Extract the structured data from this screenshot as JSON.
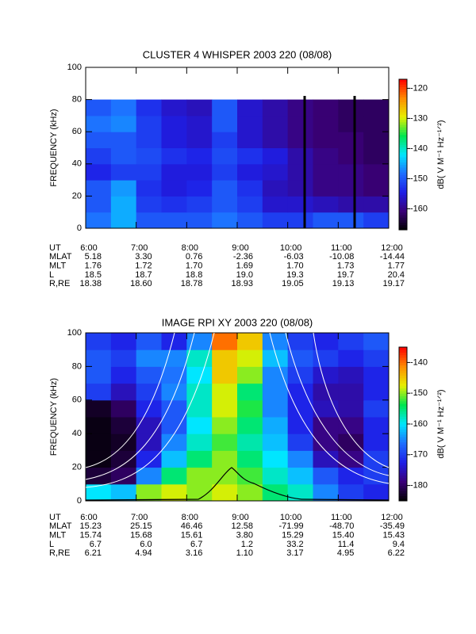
{
  "chart_data": [
    {
      "type": "heatmap",
      "title": "CLUSTER 4 WHISPER 2003 220 (08/08)",
      "y_label": "FREQUENCY (kHz)",
      "colorbar_label": "dB( V M⁻¹ Hz⁻¹ᐟ²)",
      "xlim": [
        6,
        12
      ],
      "xticks": [
        {
          "value": 6,
          "label": "6:00"
        },
        {
          "value": 7,
          "label": "7:00"
        },
        {
          "value": 8,
          "label": "8:00"
        },
        {
          "value": 9,
          "label": "9:00"
        },
        {
          "value": 10,
          "label": "10:00"
        },
        {
          "value": 11,
          "label": "11:00"
        },
        {
          "value": 12,
          "label": "12:00"
        }
      ],
      "ylim": [
        0,
        100
      ],
      "yticks": [
        0,
        20,
        40,
        60,
        80,
        100
      ],
      "clim": [
        -167,
        -117
      ],
      "cticks": [
        -160,
        -150,
        -140,
        -130,
        -120
      ],
      "colormap": [
        "#000000",
        "#3a0078",
        "#1e1ee6",
        "#1e6eff",
        "#00e6ff",
        "#00e650",
        "#e6f000",
        "#ff8c00",
        "#ff0000"
      ],
      "x_bins": [
        6,
        6.5,
        7,
        7.5,
        8,
        8.5,
        9,
        9.5,
        10,
        10.5,
        11,
        11.5,
        12
      ],
      "y_bins": [
        0,
        10,
        20,
        30,
        40,
        50,
        60,
        70,
        80
      ],
      "z": [
        [
          -148,
          -145,
          -150,
          -150,
          -150,
          -148,
          -150,
          -152,
          -152,
          -150,
          -150,
          -152
        ],
        [
          -150,
          -145,
          -152,
          -153,
          -152,
          -150,
          -152,
          -156,
          -156,
          -157,
          -158,
          -158
        ],
        [
          -150,
          -146,
          -153,
          -155,
          -154,
          -150,
          -153,
          -157,
          -158,
          -160,
          -160,
          -161
        ],
        [
          -154,
          -152,
          -152,
          -155,
          -155,
          -152,
          -155,
          -156,
          -158,
          -160,
          -160,
          -161
        ],
        [
          -152,
          -150,
          -151,
          -153,
          -154,
          -151,
          -153,
          -155,
          -158,
          -160,
          -161,
          -162
        ],
        [
          -150,
          -150,
          -152,
          -155,
          -156,
          -152,
          -156,
          -158,
          -160,
          -161,
          -161,
          -162
        ],
        [
          -148,
          -147,
          -152,
          -155,
          -156,
          -150,
          -156,
          -158,
          -160,
          -161,
          -162,
          -162
        ],
        [
          -150,
          -148,
          -153,
          -156,
          -157,
          -150,
          -156,
          -158,
          -160,
          -161,
          -162,
          -162
        ]
      ],
      "ephemeris": {
        "labels": [
          "UT",
          "MLAT",
          "MLT",
          "L",
          "R,RE"
        ],
        "rows": [
          [
            "5.18",
            "3.30",
            "0.76",
            "-2.36",
            "-6.03",
            "-10.08",
            "-14.44"
          ],
          [
            "1.76",
            "1.72",
            "1.70",
            "1.69",
            "1.70",
            "1.73",
            "1.77"
          ],
          [
            "18.5",
            "18.7",
            "18.8",
            "19.0",
            "19.3",
            "19.7",
            "20.4"
          ],
          [
            "18.38",
            "18.60",
            "18.78",
            "18.93",
            "19.05",
            "19.13",
            "19.17"
          ]
        ]
      }
    },
    {
      "type": "heatmap",
      "title": "IMAGE RPI XY 2003 220 (08/08)",
      "y_label": "FREQUENCY (kHz)",
      "colorbar_label": "dB( V M⁻¹ Hz⁻¹ᐟ²)",
      "xlim": [
        6,
        12
      ],
      "xticks": [
        {
          "value": 6,
          "label": "6:00"
        },
        {
          "value": 7,
          "label": "7:00"
        },
        {
          "value": 8,
          "label": "8:00"
        },
        {
          "value": 9,
          "label": "9:00"
        },
        {
          "value": 10,
          "label": "10:00"
        },
        {
          "value": 11,
          "label": "11:00"
        },
        {
          "value": 12,
          "label": "12:00"
        }
      ],
      "ylim": [
        0,
        100
      ],
      "yticks": [
        0,
        20,
        40,
        60,
        80,
        100
      ],
      "clim": [
        -185,
        -135
      ],
      "cticks": [
        -180,
        -170,
        -160,
        -150,
        -140
      ],
      "colormap": [
        "#000000",
        "#3a0078",
        "#1e1ee6",
        "#1e6eff",
        "#00e6ff",
        "#00e650",
        "#e6f000",
        "#ff8c00",
        "#ff0000"
      ],
      "x_bins": [
        6,
        6.5,
        7,
        7.5,
        8,
        8.5,
        9,
        9.5,
        10,
        10.5,
        11,
        11.5,
        12
      ],
      "y_bins": [
        0,
        10,
        20,
        30,
        40,
        50,
        60,
        70,
        80,
        90,
        100
      ],
      "z": [
        [
          -160,
          -162,
          -150,
          -148,
          -150,
          -148,
          -150,
          -155,
          -158,
          -165,
          -170,
          -172
        ],
        [
          -182,
          -180,
          -165,
          -155,
          -150,
          -150,
          -152,
          -158,
          -162,
          -168,
          -172,
          -170
        ],
        [
          -184,
          -182,
          -172,
          -162,
          -155,
          -150,
          -155,
          -160,
          -165,
          -175,
          -178,
          -170
        ],
        [
          -184,
          -183,
          -175,
          -165,
          -158,
          -152,
          -157,
          -162,
          -170,
          -178,
          -180,
          -172
        ],
        [
          -184,
          -182,
          -175,
          -168,
          -160,
          -150,
          -155,
          -163,
          -172,
          -178,
          -178,
          -172
        ],
        [
          -183,
          -180,
          -172,
          -168,
          -158,
          -148,
          -153,
          -165,
          -172,
          -175,
          -176,
          -170
        ],
        [
          -170,
          -175,
          -170,
          -165,
          -158,
          -148,
          -155,
          -165,
          -172,
          -176,
          -176,
          -172
        ],
        [
          -168,
          -172,
          -168,
          -166,
          -160,
          -145,
          -150,
          -165,
          -170,
          -174,
          -175,
          -172
        ],
        [
          -168,
          -170,
          -165,
          -165,
          -158,
          -145,
          -148,
          -162,
          -168,
          -170,
          -172,
          -170
        ],
        [
          -170,
          -172,
          -168,
          -172,
          -165,
          -140,
          -145,
          -165,
          -170,
          -172,
          -170,
          -168
        ]
      ],
      "ephemeris": {
        "labels": [
          "UT",
          "MLAT",
          "MLT",
          "L",
          "R,RE"
        ],
        "rows": [
          [
            "15.23",
            "25.15",
            "46.46",
            "12.58",
            "-71.99",
            "-48.70",
            "-35.49"
          ],
          [
            "15.74",
            "15.68",
            "15.61",
            "3.80",
            "15.29",
            "15.40",
            "15.43"
          ],
          [
            "6.7",
            "6.0",
            "6.7",
            "1.2",
            "33.2",
            "11.4",
            "9.4"
          ],
          [
            "6.21",
            "4.94",
            "3.16",
            "1.10",
            "3.17",
            "4.95",
            "6.22"
          ]
        ]
      }
    }
  ]
}
